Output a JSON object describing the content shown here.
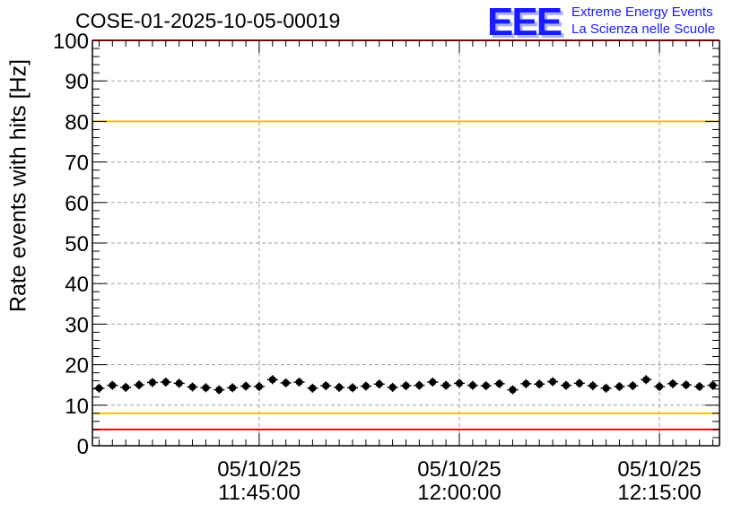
{
  "title": "COSE-01-2025-10-05-00019",
  "logo": {
    "text": "EEE",
    "line1": "Extreme Energy Events",
    "line2": "La Scienza nelle Scuole",
    "color": "#1a1aff"
  },
  "chart_data": {
    "type": "scatter",
    "title": "COSE-01-2025-10-05-00019",
    "xlabel": "",
    "ylabel": "Rate events with hits [Hz]",
    "ylim": [
      0,
      100
    ],
    "yticks": [
      0,
      10,
      20,
      30,
      40,
      50,
      60,
      70,
      80,
      90,
      100
    ],
    "xlim_minutes": [
      -12.5,
      34.5
    ],
    "xticks": [
      {
        "minute": 0,
        "date": "05/10/25",
        "time": "11:45:00"
      },
      {
        "minute": 15,
        "date": "05/10/25",
        "time": "12:00:00"
      },
      {
        "minute": 30,
        "date": "05/10/25",
        "time": "12:15:00"
      }
    ],
    "grid": true,
    "reference_lines": [
      {
        "y": 100,
        "color": "#ff0000"
      },
      {
        "y": 80,
        "color": "#f2c200"
      },
      {
        "y": 8,
        "color": "#f2c200"
      },
      {
        "y": 4,
        "color": "#ff0000"
      }
    ],
    "series": [
      {
        "name": "rate",
        "x": [
          -12,
          -11,
          -10,
          -9,
          -8,
          -7,
          -6,
          -5,
          -4,
          -3,
          -2,
          -1,
          0,
          1,
          2,
          3,
          4,
          5,
          6,
          7,
          8,
          9,
          10,
          11,
          12,
          13,
          14,
          15,
          16,
          17,
          18,
          19,
          20,
          21,
          22,
          23,
          24,
          25,
          26,
          27,
          28,
          29,
          30,
          31,
          32,
          33,
          34
        ],
        "values": [
          14.2,
          14.9,
          14.4,
          15.0,
          15.6,
          15.7,
          15.4,
          14.5,
          14.3,
          13.8,
          14.3,
          14.7,
          14.6,
          16.3,
          15.5,
          15.7,
          14.2,
          14.8,
          14.4,
          14.3,
          14.7,
          15.2,
          14.4,
          14.8,
          14.9,
          15.7,
          14.9,
          15.4,
          14.9,
          14.8,
          15.3,
          13.8,
          15.3,
          15.2,
          15.8,
          14.9,
          15.4,
          14.8,
          14.2,
          14.6,
          14.8,
          16.3,
          14.6,
          15.3,
          15.0,
          14.6,
          14.9
        ]
      }
    ]
  }
}
